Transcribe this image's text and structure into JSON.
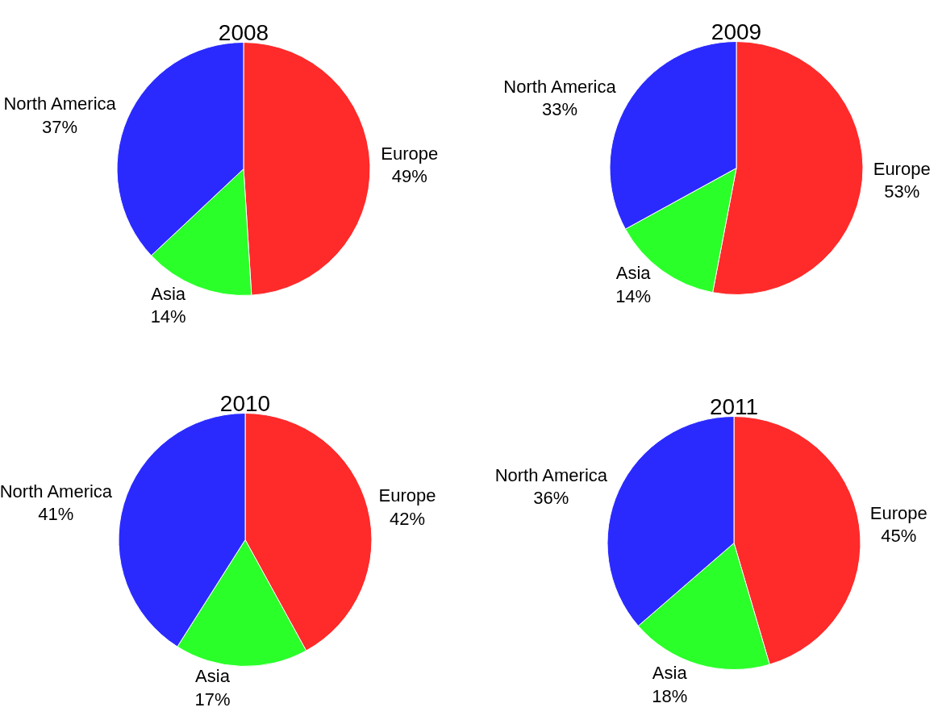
{
  "chart_data": [
    {
      "type": "pie",
      "title": "2008",
      "categories": [
        "Europe",
        "Asia",
        "North America"
      ],
      "values": [
        49,
        14,
        37
      ],
      "value_labels": [
        "49%",
        "14%",
        "37%"
      ],
      "colors": [
        "#ff2a2a",
        "#2aff2a",
        "#2a2aff"
      ]
    },
    {
      "type": "pie",
      "title": "2009",
      "categories": [
        "Europe",
        "Asia",
        "North America"
      ],
      "values": [
        53,
        14,
        33
      ],
      "value_labels": [
        "53%",
        "14%",
        "33%"
      ],
      "colors": [
        "#ff2a2a",
        "#2aff2a",
        "#2a2aff"
      ]
    },
    {
      "type": "pie",
      "title": "2010",
      "categories": [
        "Europe",
        "Asia",
        "North America"
      ],
      "values": [
        42,
        17,
        41
      ],
      "value_labels": [
        "42%",
        "17%",
        "41%"
      ],
      "colors": [
        "#ff2a2a",
        "#2aff2a",
        "#2a2aff"
      ]
    },
    {
      "type": "pie",
      "title": "2011",
      "categories": [
        "Europe",
        "Asia",
        "North America"
      ],
      "values": [
        45,
        18,
        36
      ],
      "value_labels": [
        "45%",
        "18%",
        "36%"
      ],
      "colors": [
        "#ff2a2a",
        "#2aff2a",
        "#2a2aff"
      ]
    }
  ]
}
